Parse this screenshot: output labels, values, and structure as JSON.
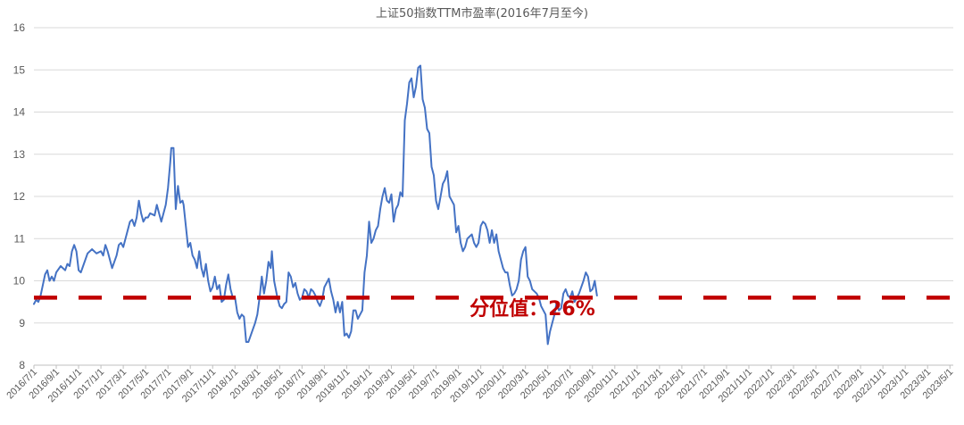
{
  "chart_data": {
    "type": "line",
    "title": "上证50指数TTM市盈率(2016年7月至今)",
    "xlabel": "",
    "ylabel": "",
    "ylim": [
      8,
      16
    ],
    "yticks": [
      8,
      9,
      10,
      11,
      12,
      13,
      14,
      15,
      16
    ],
    "grid": "horizontal",
    "legend": "none",
    "x_tick_labels": [
      "2016/7/1",
      "2016/9/1",
      "2016/11/1",
      "2017/1/1",
      "2017/3/1",
      "2017/5/1",
      "2017/7/1",
      "2017/9/1",
      "2017/11/1",
      "2018/1/1",
      "2018/3/1",
      "2018/5/1",
      "2018/7/1",
      "2018/9/1",
      "2018/11/1",
      "2019/1/1",
      "2019/3/1",
      "2019/5/1",
      "2019/7/1",
      "2019/9/1",
      "2019/11/1",
      "2020/1/1",
      "2020/3/1",
      "2020/5/1",
      "2020/7/1",
      "2020/9/1",
      "2020/11/1",
      "2021/1/1",
      "2021/3/1",
      "2021/5/1",
      "2021/7/1",
      "2021/9/1",
      "2021/11/1",
      "2022/1/1",
      "2022/3/1",
      "2022/5/1",
      "2022/7/1",
      "2022/9/1",
      "2022/11/1",
      "2023/1/1",
      "2023/3/1",
      "2023/5/1"
    ],
    "series": [
      {
        "color": "#4472c4",
        "points": [
          [
            0,
            9.45
          ],
          [
            0.1,
            9.55
          ],
          [
            0.2,
            9.5
          ],
          [
            0.3,
            9.65
          ],
          [
            0.4,
            9.9
          ],
          [
            0.5,
            10.15
          ],
          [
            0.6,
            10.25
          ],
          [
            0.7,
            10.0
          ],
          [
            0.8,
            10.1
          ],
          [
            0.9,
            10.0
          ],
          [
            1.0,
            10.2
          ],
          [
            1.2,
            10.35
          ],
          [
            1.4,
            10.25
          ],
          [
            1.5,
            10.4
          ],
          [
            1.6,
            10.35
          ],
          [
            1.7,
            10.7
          ],
          [
            1.8,
            10.85
          ],
          [
            1.9,
            10.7
          ],
          [
            2.0,
            10.25
          ],
          [
            2.1,
            10.2
          ],
          [
            2.2,
            10.35
          ],
          [
            2.4,
            10.65
          ],
          [
            2.6,
            10.75
          ],
          [
            2.8,
            10.65
          ],
          [
            3.0,
            10.7
          ],
          [
            3.1,
            10.6
          ],
          [
            3.2,
            10.85
          ],
          [
            3.3,
            10.7
          ],
          [
            3.4,
            10.5
          ],
          [
            3.5,
            10.3
          ],
          [
            3.6,
            10.45
          ],
          [
            3.7,
            10.6
          ],
          [
            3.8,
            10.85
          ],
          [
            3.9,
            10.9
          ],
          [
            4.0,
            10.8
          ],
          [
            4.1,
            11.0
          ],
          [
            4.2,
            11.2
          ],
          [
            4.3,
            11.4
          ],
          [
            4.4,
            11.45
          ],
          [
            4.5,
            11.3
          ],
          [
            4.6,
            11.5
          ],
          [
            4.7,
            11.9
          ],
          [
            4.8,
            11.6
          ],
          [
            4.9,
            11.4
          ],
          [
            5.0,
            11.5
          ],
          [
            5.1,
            11.5
          ],
          [
            5.2,
            11.6
          ],
          [
            5.4,
            11.55
          ],
          [
            5.5,
            11.8
          ],
          [
            5.6,
            11.6
          ],
          [
            5.7,
            11.4
          ],
          [
            5.8,
            11.6
          ],
          [
            5.9,
            11.8
          ],
          [
            6.0,
            12.2
          ],
          [
            6.1,
            12.8
          ],
          [
            6.15,
            13.15
          ],
          [
            6.25,
            13.15
          ],
          [
            6.35,
            11.7
          ],
          [
            6.45,
            12.25
          ],
          [
            6.55,
            11.85
          ],
          [
            6.65,
            11.9
          ],
          [
            6.7,
            11.8
          ],
          [
            6.8,
            11.3
          ],
          [
            6.9,
            10.8
          ],
          [
            7.0,
            10.9
          ],
          [
            7.1,
            10.6
          ],
          [
            7.2,
            10.5
          ],
          [
            7.3,
            10.3
          ],
          [
            7.4,
            10.7
          ],
          [
            7.5,
            10.3
          ],
          [
            7.6,
            10.1
          ],
          [
            7.7,
            10.4
          ],
          [
            7.8,
            10.0
          ],
          [
            7.9,
            9.75
          ],
          [
            8.0,
            9.85
          ],
          [
            8.1,
            10.1
          ],
          [
            8.2,
            9.8
          ],
          [
            8.3,
            9.9
          ],
          [
            8.4,
            9.5
          ],
          [
            8.5,
            9.55
          ],
          [
            8.6,
            9.9
          ],
          [
            8.7,
            10.15
          ],
          [
            8.8,
            9.8
          ],
          [
            8.9,
            9.6
          ],
          [
            9.0,
            9.6
          ],
          [
            9.1,
            9.25
          ],
          [
            9.2,
            9.1
          ],
          [
            9.3,
            9.2
          ],
          [
            9.4,
            9.15
          ],
          [
            9.5,
            8.55
          ],
          [
            9.6,
            8.55
          ],
          [
            9.7,
            8.7
          ],
          [
            9.8,
            8.85
          ],
          [
            9.9,
            9.0
          ],
          [
            10.0,
            9.2
          ],
          [
            10.1,
            9.6
          ],
          [
            10.2,
            10.1
          ],
          [
            10.3,
            9.7
          ],
          [
            10.4,
            10.0
          ],
          [
            10.5,
            10.45
          ],
          [
            10.6,
            10.3
          ],
          [
            10.65,
            10.7
          ],
          [
            10.75,
            10.0
          ],
          [
            10.9,
            9.6
          ],
          [
            11.0,
            9.4
          ],
          [
            11.1,
            9.35
          ],
          [
            11.2,
            9.45
          ],
          [
            11.3,
            9.5
          ],
          [
            11.4,
            10.2
          ],
          [
            11.5,
            10.1
          ],
          [
            11.6,
            9.85
          ],
          [
            11.7,
            9.95
          ],
          [
            11.8,
            9.7
          ],
          [
            11.9,
            9.55
          ],
          [
            12.0,
            9.6
          ],
          [
            12.1,
            9.8
          ],
          [
            12.2,
            9.75
          ],
          [
            12.3,
            9.6
          ],
          [
            12.4,
            9.8
          ],
          [
            12.5,
            9.75
          ],
          [
            12.6,
            9.65
          ],
          [
            12.7,
            9.5
          ],
          [
            12.8,
            9.4
          ],
          [
            12.9,
            9.55
          ],
          [
            13.0,
            9.85
          ],
          [
            13.1,
            9.95
          ],
          [
            13.2,
            10.05
          ],
          [
            13.3,
            9.75
          ],
          [
            13.4,
            9.55
          ],
          [
            13.5,
            9.25
          ],
          [
            13.6,
            9.5
          ],
          [
            13.7,
            9.25
          ],
          [
            13.8,
            9.5
          ],
          [
            13.9,
            8.7
          ],
          [
            14.0,
            8.75
          ],
          [
            14.1,
            8.65
          ],
          [
            14.2,
            8.8
          ],
          [
            14.3,
            9.3
          ],
          [
            14.4,
            9.3
          ],
          [
            14.5,
            9.1
          ],
          [
            14.6,
            9.2
          ],
          [
            14.7,
            9.3
          ],
          [
            14.8,
            10.2
          ],
          [
            14.9,
            10.6
          ],
          [
            15.0,
            11.4
          ],
          [
            15.1,
            10.9
          ],
          [
            15.2,
            11.0
          ],
          [
            15.3,
            11.2
          ],
          [
            15.4,
            11.3
          ],
          [
            15.5,
            11.7
          ],
          [
            15.6,
            12.0
          ],
          [
            15.7,
            12.2
          ],
          [
            15.8,
            11.9
          ],
          [
            15.9,
            11.85
          ],
          [
            16.0,
            12.05
          ],
          [
            16.1,
            11.4
          ],
          [
            16.2,
            11.7
          ],
          [
            16.3,
            11.8
          ],
          [
            16.4,
            12.1
          ],
          [
            16.5,
            12.0
          ],
          [
            16.6,
            13.8
          ],
          [
            16.7,
            14.2
          ],
          [
            16.8,
            14.7
          ],
          [
            16.9,
            14.8
          ],
          [
            17.0,
            14.35
          ],
          [
            17.1,
            14.6
          ],
          [
            17.2,
            15.05
          ],
          [
            17.3,
            15.1
          ],
          [
            17.4,
            14.3
          ],
          [
            17.5,
            14.1
          ],
          [
            17.6,
            13.6
          ],
          [
            17.7,
            13.5
          ],
          [
            17.8,
            12.7
          ],
          [
            17.9,
            12.5
          ],
          [
            18.0,
            11.9
          ],
          [
            18.1,
            11.7
          ],
          [
            18.2,
            12.0
          ],
          [
            18.3,
            12.3
          ],
          [
            18.4,
            12.4
          ],
          [
            18.5,
            12.6
          ],
          [
            18.6,
            12.0
          ],
          [
            18.7,
            11.9
          ],
          [
            18.8,
            11.8
          ],
          [
            18.9,
            11.15
          ],
          [
            19.0,
            11.3
          ],
          [
            19.1,
            10.9
          ],
          [
            19.2,
            10.7
          ],
          [
            19.3,
            10.8
          ],
          [
            19.4,
            11.0
          ],
          [
            19.5,
            11.05
          ],
          [
            19.6,
            11.1
          ],
          [
            19.7,
            10.9
          ],
          [
            19.8,
            10.8
          ],
          [
            19.9,
            10.9
          ],
          [
            20.0,
            11.3
          ],
          [
            20.1,
            11.4
          ],
          [
            20.2,
            11.35
          ],
          [
            20.3,
            11.2
          ],
          [
            20.4,
            10.9
          ],
          [
            20.5,
            11.2
          ],
          [
            20.6,
            10.9
          ],
          [
            20.7,
            11.1
          ],
          [
            20.8,
            10.7
          ],
          [
            20.9,
            10.5
          ],
          [
            21.0,
            10.3
          ],
          [
            21.1,
            10.2
          ],
          [
            21.2,
            10.2
          ],
          [
            21.3,
            9.9
          ],
          [
            21.4,
            9.65
          ],
          [
            21.5,
            9.7
          ],
          [
            21.6,
            9.8
          ],
          [
            21.7,
            10.0
          ],
          [
            21.8,
            10.5
          ],
          [
            21.9,
            10.7
          ],
          [
            22.0,
            10.8
          ],
          [
            22.1,
            10.1
          ],
          [
            22.2,
            10.0
          ],
          [
            22.3,
            9.8
          ],
          [
            22.4,
            9.75
          ],
          [
            22.5,
            9.7
          ],
          [
            22.6,
            9.6
          ],
          [
            22.7,
            9.4
          ],
          [
            22.8,
            9.3
          ],
          [
            22.9,
            9.2
          ],
          [
            23.0,
            8.5
          ],
          [
            23.1,
            8.8
          ],
          [
            23.2,
            9.0
          ],
          [
            23.3,
            9.2
          ],
          [
            23.4,
            9.5
          ],
          [
            23.5,
            9.3
          ],
          [
            23.6,
            9.35
          ],
          [
            23.7,
            9.7
          ],
          [
            23.8,
            9.8
          ],
          [
            23.9,
            9.65
          ],
          [
            24.0,
            9.6
          ],
          [
            24.1,
            9.75
          ],
          [
            24.2,
            9.5
          ],
          [
            24.3,
            9.6
          ],
          [
            24.4,
            9.7
          ],
          [
            24.5,
            9.85
          ],
          [
            24.6,
            10.0
          ],
          [
            24.7,
            10.2
          ],
          [
            24.8,
            10.1
          ],
          [
            24.9,
            9.75
          ],
          [
            25.0,
            9.8
          ],
          [
            25.1,
            10.0
          ],
          [
            25.2,
            9.65
          ]
        ]
      }
    ],
    "reference_line": {
      "value": 9.6,
      "color": "#c00000",
      "style": "dashed"
    },
    "annotation": {
      "text": "分位值：26%",
      "color": "#c00000",
      "x": 19.5,
      "y": 9.18
    }
  }
}
